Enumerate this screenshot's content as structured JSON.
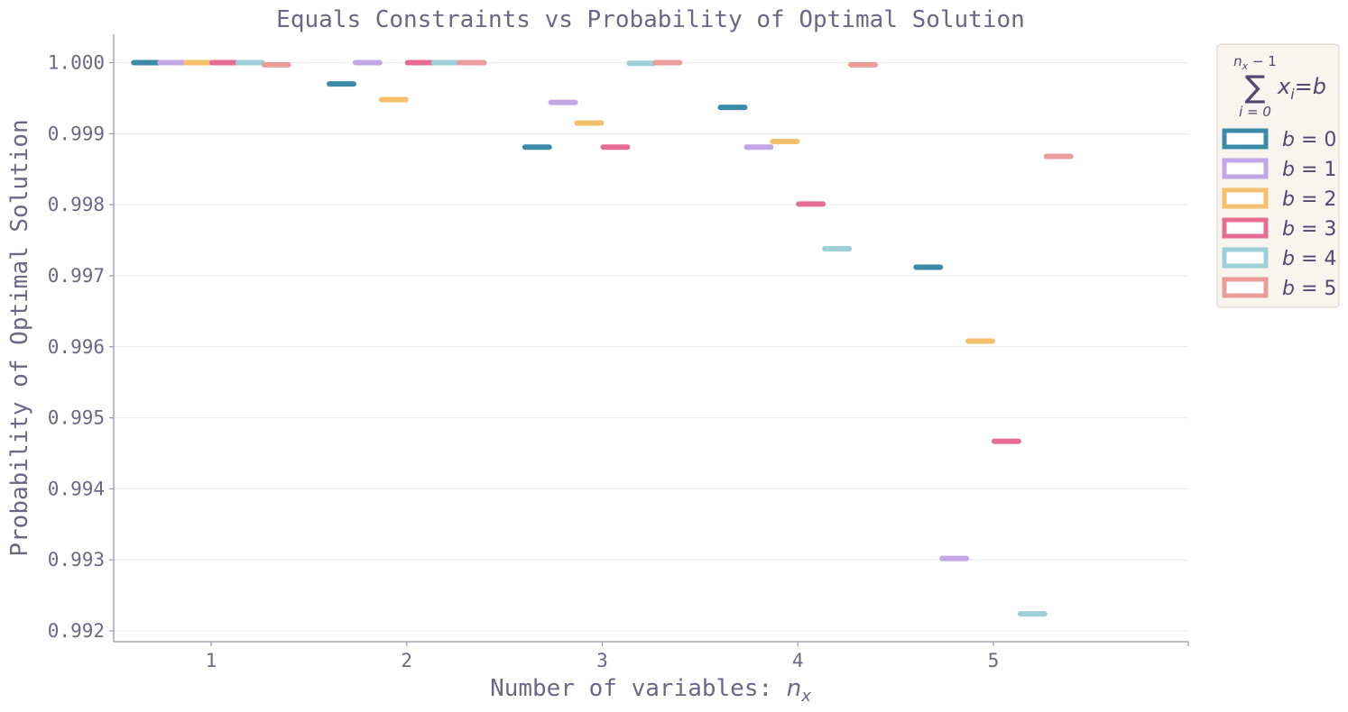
{
  "chart_data": {
    "type": "bar",
    "title": "Equals Constraints vs Probability of Optimal Solution",
    "xlabel_text": "Number of variables: ",
    "xlabel_math": "n",
    "xlabel_sub": "x",
    "ylabel": "Probability of Optimal Solution",
    "categories": [
      "1",
      "2",
      "3",
      "4",
      "5"
    ],
    "x": [
      1,
      2,
      3,
      4,
      5
    ],
    "ylim": [
      0.99185,
      1.0004
    ],
    "yticks": [
      "0.992",
      "0.993",
      "0.994",
      "0.995",
      "0.996",
      "0.997",
      "0.998",
      "0.999",
      "1.000"
    ],
    "ytick_values": [
      0.992,
      0.993,
      0.994,
      0.995,
      0.996,
      0.997,
      0.998,
      0.999,
      1.0
    ],
    "grid": true,
    "legend": {
      "position": "upper-right-outside",
      "title_top": "n",
      "title_top_sub": "x",
      "title_top_rest": " − 1",
      "title_sigma": "∑",
      "title_bottom": "i = 0",
      "title_expr": "x",
      "title_expr_sub": "i",
      "title_expr_rest": "=b"
    },
    "series": [
      {
        "name": "b = 0",
        "label_var": "b",
        "label_rest": " = 0",
        "color": "#3a8aa8",
        "values": [
          1.0,
          0.9997,
          0.99881,
          0.99937,
          0.99712
        ]
      },
      {
        "name": "b = 1",
        "label_var": "b",
        "label_rest": " = 1",
        "color": "#c2a6e6",
        "values": [
          1.0,
          1.0,
          0.99944,
          0.99881,
          0.99302
        ]
      },
      {
        "name": "b = 2",
        "label_var": "b",
        "label_rest": " = 2",
        "color": "#f4c06c",
        "values": [
          1.0,
          0.99948,
          0.99915,
          0.99889,
          0.99608
        ]
      },
      {
        "name": "b = 3",
        "label_var": "b",
        "label_rest": " = 3",
        "color": "#e56d93",
        "values": [
          1.0,
          1.0,
          0.99881,
          0.99801,
          0.99467
        ]
      },
      {
        "name": "b = 4",
        "label_var": "b",
        "label_rest": " = 4",
        "color": "#9ccfd8",
        "values": [
          1.0,
          1.0,
          0.99999,
          0.99738,
          0.99224
        ]
      },
      {
        "name": "b = 5",
        "label_var": "b",
        "label_rest": " = 5",
        "color": "#ea9c99",
        "values": [
          0.99997,
          1.0,
          1.0,
          0.99997,
          0.99868
        ]
      }
    ]
  },
  "colors": {
    "text": "#6b6785",
    "axis": "#9a98ad",
    "grid": "#e9e9ee",
    "legend_bg": "#f8f4ee",
    "legend_border": "#d8d0c6"
  }
}
